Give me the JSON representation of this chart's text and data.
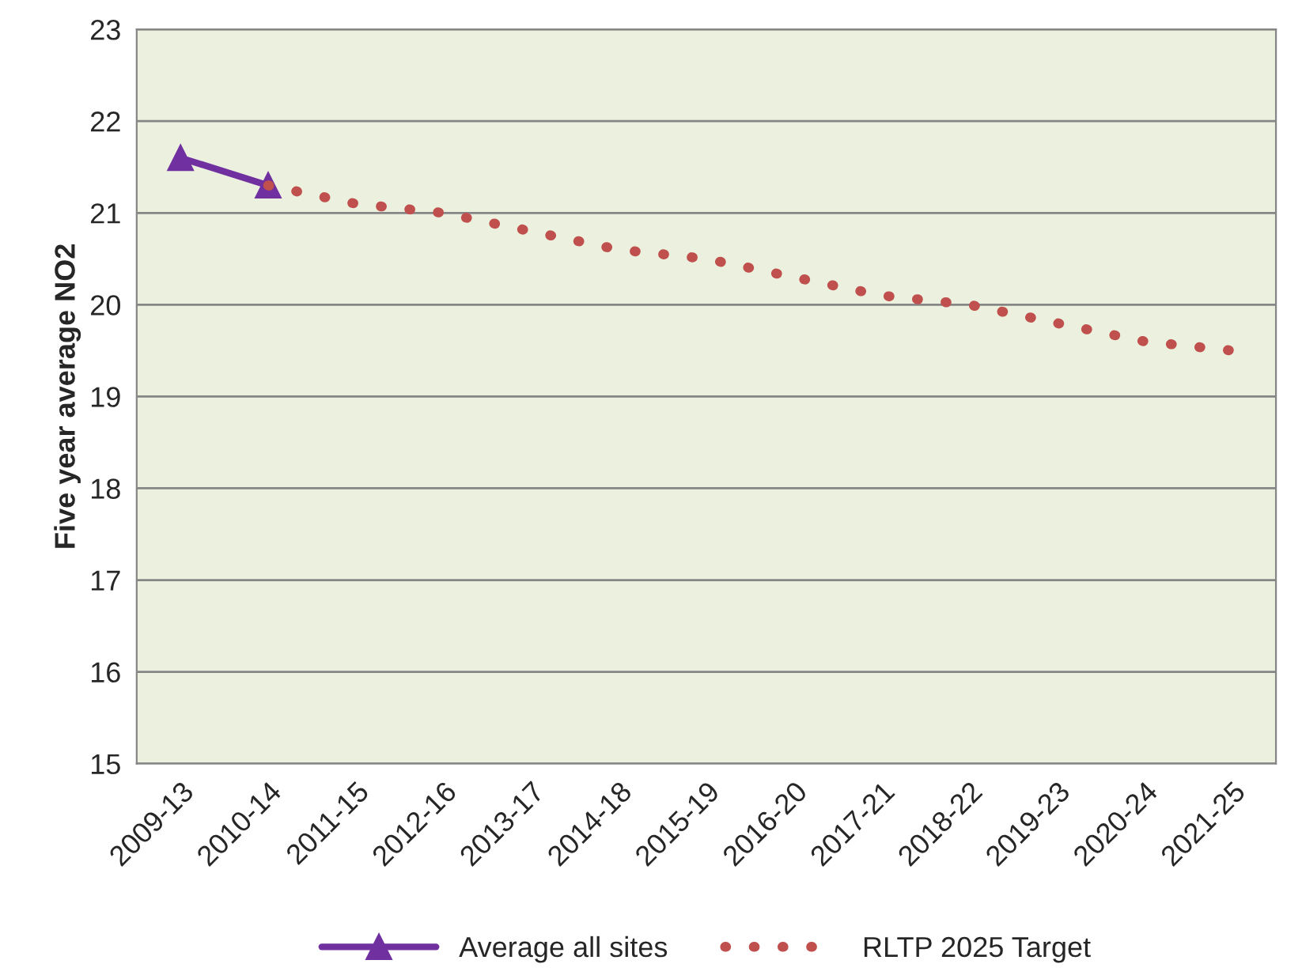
{
  "chart_data": {
    "type": "line",
    "ylabel": "Five year average NO2",
    "categories": [
      "2009-13",
      "2010-14",
      "2011-15",
      "2012-16",
      "2013-17",
      "2014-18",
      "2015-19",
      "2016-20",
      "2017-21",
      "2018-22",
      "2019-23",
      "2020-24",
      "2021-25"
    ],
    "series": [
      {
        "name": "Average all sites",
        "color": "#7030a0",
        "marker": "triangle",
        "line_style": "solid",
        "values": [
          21.6,
          21.3,
          null,
          null,
          null,
          null,
          null,
          null,
          null,
          null,
          null,
          null,
          null
        ]
      },
      {
        "name": "RLTP 2025 Target",
        "color": "#c0504d",
        "marker": "none",
        "line_style": "dotted",
        "values": [
          null,
          21.3,
          21.1,
          21.0,
          20.8,
          20.6,
          20.5,
          20.3,
          20.1,
          20.0,
          19.8,
          19.6,
          19.5
        ]
      }
    ],
    "ylim": [
      15,
      23
    ],
    "yticks": [
      15,
      16,
      17,
      18,
      19,
      20,
      21,
      22,
      23
    ],
    "grid": "y",
    "legend": "bottom"
  }
}
